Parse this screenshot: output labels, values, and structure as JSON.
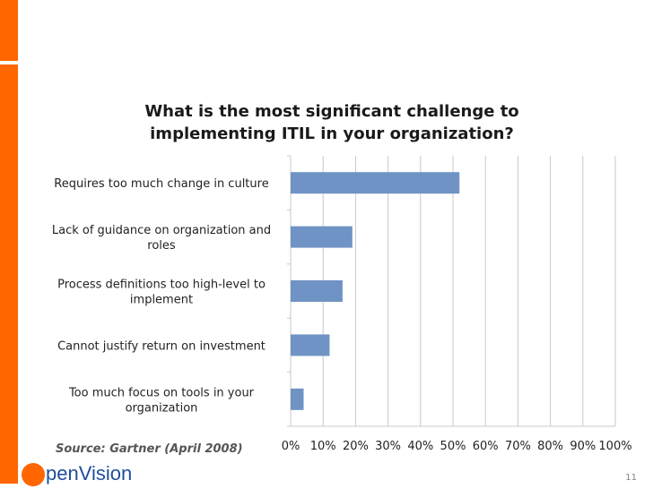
{
  "colors": {
    "accent": "#ff6600",
    "bar": "#6f93c4",
    "grid": "#c8c8c8",
    "logo_text": "#1f4e9c"
  },
  "title": "What is the most significant challenge to implementing ITIL in your organization?",
  "source": "Source: Gartner (April 2008)",
  "logo": {
    "icon": "orange-circle-o",
    "text": "penVision"
  },
  "page_number": "11",
  "chart_data": {
    "type": "bar",
    "orientation": "horizontal",
    "title": "What is the most significant challenge to implementing ITIL in your organization?",
    "categories": [
      [
        "Requires too much change in culture"
      ],
      [
        "Lack of guidance on organization and",
        "roles"
      ],
      [
        "Process definitions too high-level to",
        "implement"
      ],
      [
        "Cannot justify return on investment"
      ],
      [
        "Too much focus on tools in your",
        "organization"
      ]
    ],
    "values": [
      52,
      19,
      16,
      12,
      4
    ],
    "xlim": [
      0,
      100
    ],
    "ticks": [
      "0%",
      "10%",
      "20%",
      "30%",
      "40%",
      "50%",
      "60%",
      "70%",
      "80%",
      "90%",
      "100%"
    ],
    "grid": true,
    "legend": "none"
  }
}
